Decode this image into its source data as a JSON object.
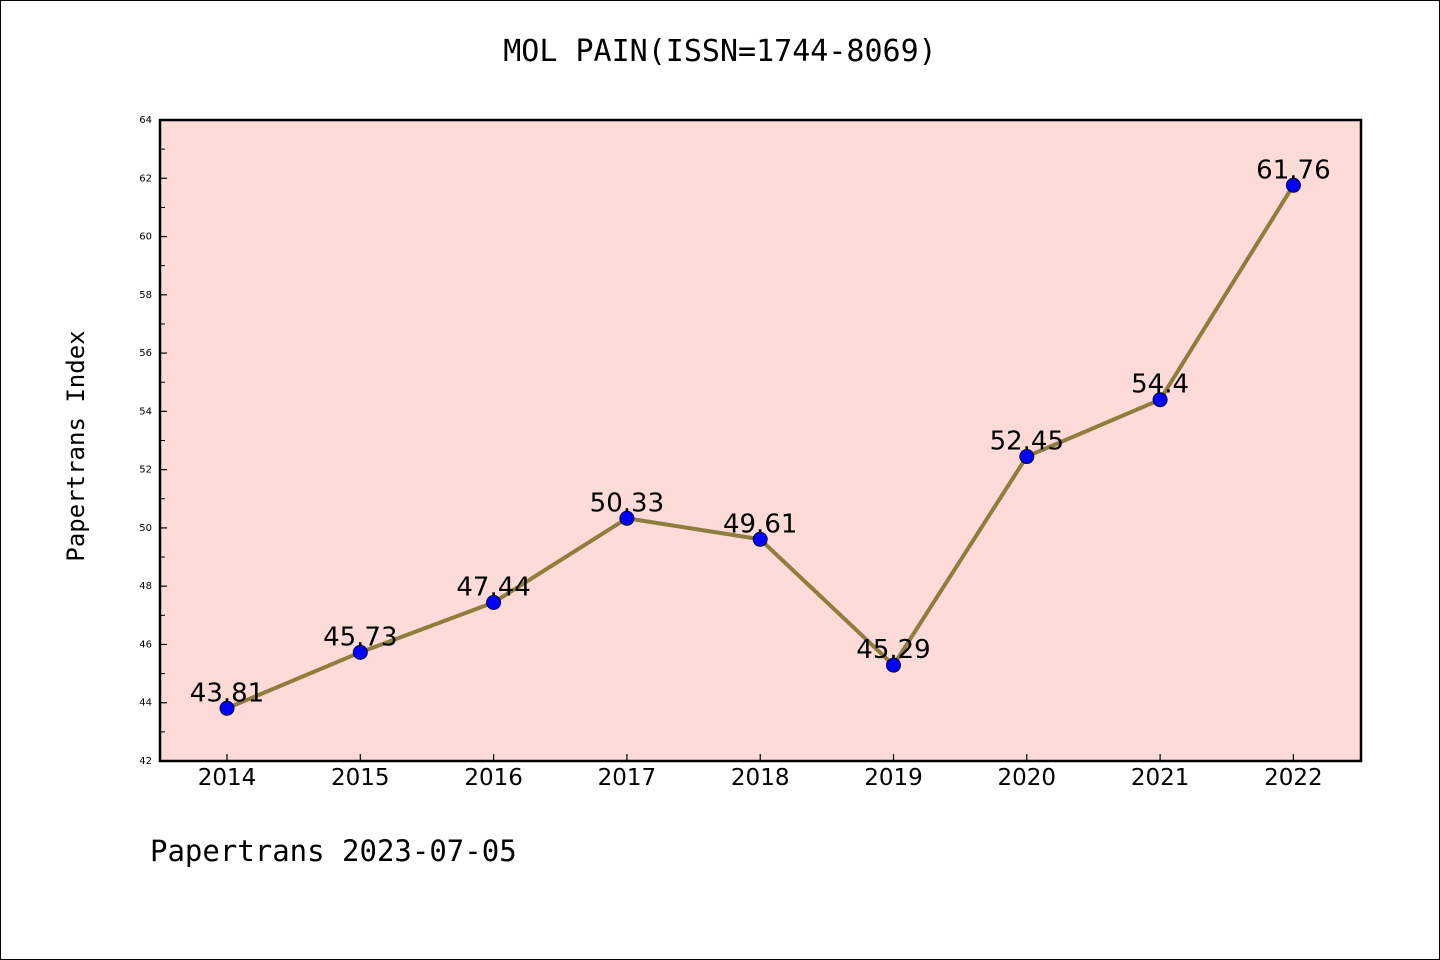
{
  "chart_data": {
    "type": "line",
    "title": "MOL PAIN(ISSN=1744-8069)",
    "ylabel": "Papertrans Index",
    "xlabel": "",
    "categories": [
      "2014",
      "2015",
      "2016",
      "2017",
      "2018",
      "2019",
      "2020",
      "2021",
      "2022"
    ],
    "series": [
      {
        "values": [
          43.81,
          45.73,
          47.44,
          50.33,
          49.61,
          45.29,
          52.45,
          54.4,
          61.76
        ]
      }
    ],
    "data_labels": [
      "43.81",
      "45.73",
      "47.44",
      "50.33",
      "49.61",
      "45.29",
      "52.45",
      "54.4",
      "61.76"
    ],
    "ylim": [
      42,
      64
    ],
    "yticks": [
      "42",
      "44",
      "46",
      "48",
      "50",
      "52",
      "54",
      "56",
      "58",
      "60",
      "62",
      "64"
    ],
    "grid": false,
    "colors": {
      "plot_background": "#fddbd8",
      "line": "#8f7d3c",
      "marker": "#0000ff"
    }
  },
  "footer": "Papertrans 2023-07-05"
}
